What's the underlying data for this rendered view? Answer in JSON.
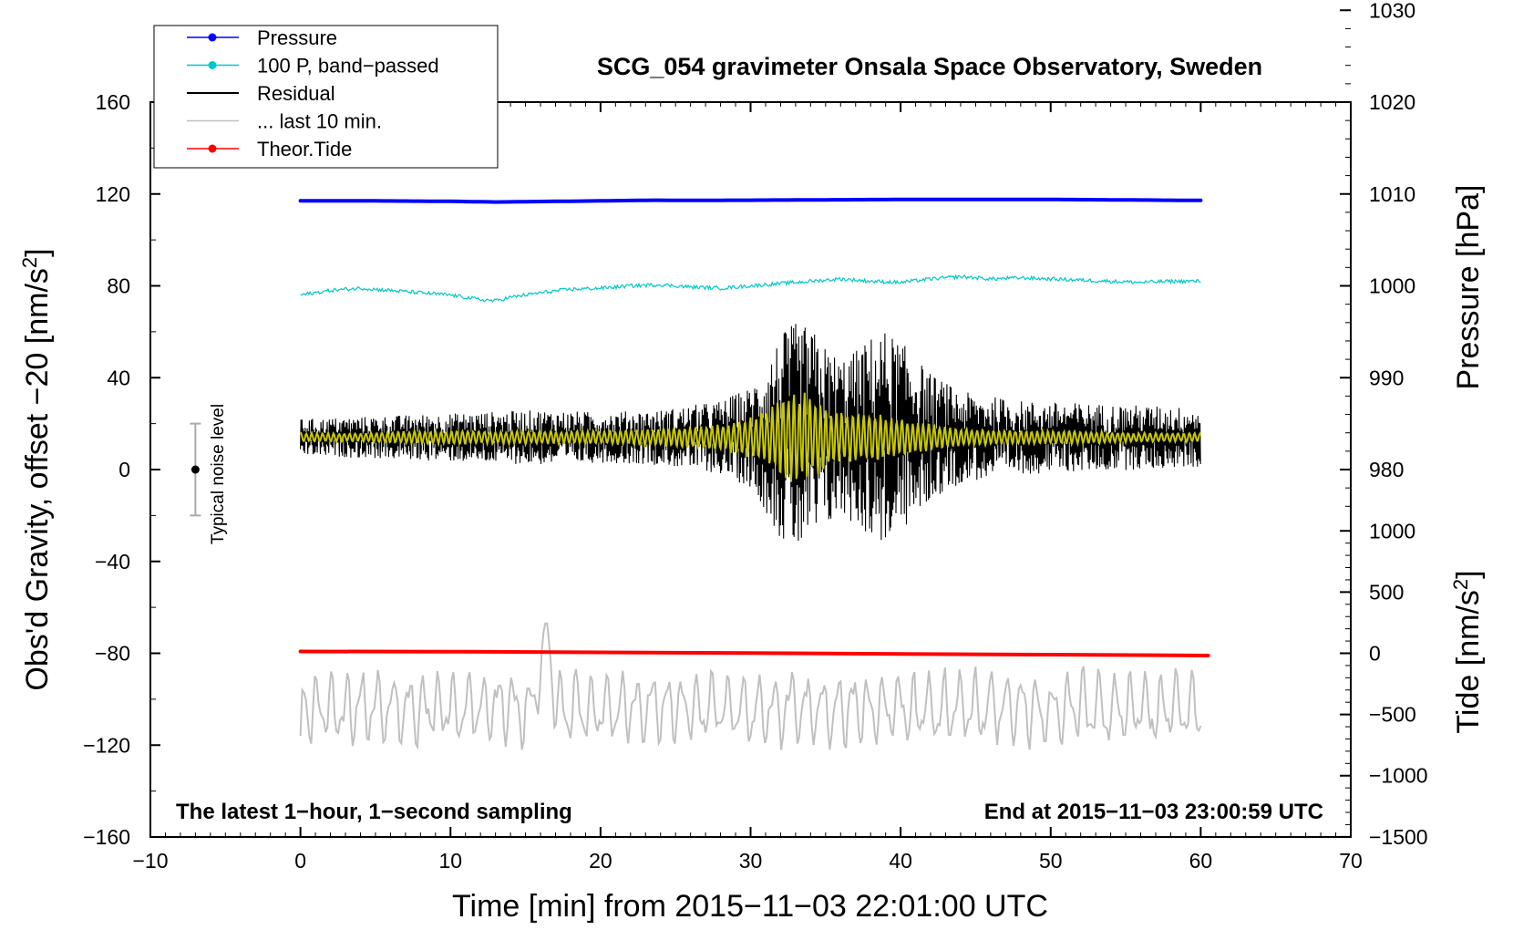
{
  "chart_data": {
    "type": "line",
    "title": "SCG_054 gravimeter Onsala Space Observatory, Sweden",
    "xlabel": "Time [min] from 2015−11−03 22:01:00 UTC",
    "ylabel_left_main": "Obs'd Gravity, offset −20 [nm/s",
    "ylabel_left_sup": "2",
    "ylabel_left_end": "]",
    "ylabel_right_top": "Pressure [hPa]",
    "ylabel_right_bottom_main": "Tide [nm/s",
    "ylabel_right_bottom_sup": "2",
    "ylabel_right_bottom_end": "]",
    "xlim": [
      -10,
      70
    ],
    "ylim_left": [
      -160,
      160
    ],
    "x_ticks": [
      {
        "value": -10,
        "label": "−10"
      },
      {
        "value": 0,
        "label": "0"
      },
      {
        "value": 10,
        "label": "10"
      },
      {
        "value": 20,
        "label": "20"
      },
      {
        "value": 30,
        "label": "30"
      },
      {
        "value": 40,
        "label": "40"
      },
      {
        "value": 50,
        "label": "50"
      },
      {
        "value": 60,
        "label": "60"
      },
      {
        "value": 70,
        "label": "70"
      }
    ],
    "y_left_ticks": [
      {
        "value": 160,
        "label": "160"
      },
      {
        "value": 120,
        "label": "120"
      },
      {
        "value": 80,
        "label": "80"
      },
      {
        "value": 40,
        "label": "40"
      },
      {
        "value": 0,
        "label": "0"
      },
      {
        "value": -40,
        "label": "−40"
      },
      {
        "value": -80,
        "label": "−80"
      },
      {
        "value": -120,
        "label": "−120"
      },
      {
        "value": -160,
        "label": "−160"
      }
    ],
    "pressure_axis": {
      "scale_nm_s2_per_hPa": 4.0,
      "ref_hPa": 1000,
      "ref_left_value": 80,
      "ticks": [
        {
          "value": 1030,
          "label": "1030"
        },
        {
          "value": 1020,
          "label": "1020"
        },
        {
          "value": 1010,
          "label": "1010"
        },
        {
          "value": 1000,
          "label": "1000"
        },
        {
          "value": 990,
          "label": "990"
        },
        {
          "value": 980,
          "label": "980"
        }
      ]
    },
    "tide_axis": {
      "scale_nm_s2_per_unit": 0.0533,
      "ref_value": 0,
      "ref_left_value": -80,
      "ticks": [
        {
          "value": 1000,
          "label": "1000"
        },
        {
          "value": 500,
          "label": "500"
        },
        {
          "value": 0,
          "label": "0"
        },
        {
          "value": -500,
          "label": "−500"
        },
        {
          "value": -1000,
          "label": "−1000"
        },
        {
          "value": -1500,
          "label": "−1500"
        }
      ]
    },
    "legend": [
      {
        "label": "Pressure",
        "color": "#0000ff",
        "marker": true
      },
      {
        "label": "100 P, band−passed",
        "color": "#00c8c8",
        "marker": true
      },
      {
        "label": "Residual",
        "color": "#000000",
        "marker": false
      },
      {
        "label": "... last 10 min.",
        "color": "#c0c0c0",
        "marker": false
      },
      {
        "label": "Theor.Tide",
        "color": "#ff0000",
        "marker": true
      }
    ],
    "legend_position": "top-left",
    "annotations": {
      "bottom_left": "The latest 1−hour, 1−second sampling",
      "bottom_right": "End at 2015−11−03 23:00:59 UTC",
      "noise_label": "Typical noise level"
    },
    "noise_bar": {
      "x": -7,
      "center": 0,
      "low": -20,
      "high": 20
    },
    "series": [
      {
        "name": "Pressure",
        "color": "#0000ff",
        "x": [
          0,
          5,
          10,
          13,
          20,
          24,
          25,
          30,
          40,
          50,
          55,
          60
        ],
        "y": [
          117,
          117,
          116.8,
          116.5,
          117,
          117.3,
          117.2,
          117.3,
          117.6,
          117.6,
          117.4,
          117.2
        ]
      },
      {
        "name": "100 P, band-passed",
        "color": "#00c8c8",
        "x": [
          0,
          2,
          4,
          6,
          8,
          10,
          12,
          13,
          14,
          16,
          18,
          20,
          22,
          24,
          26,
          28,
          30,
          32,
          34,
          36,
          38,
          40,
          42,
          44,
          46,
          48,
          50,
          52,
          54,
          56,
          58,
          60
        ],
        "y": [
          76,
          78,
          79,
          78,
          77,
          76,
          74,
          73.5,
          75,
          77,
          78.5,
          79,
          80,
          80.5,
          79.5,
          79,
          80,
          81,
          82,
          83,
          82,
          81.5,
          83,
          84,
          83,
          83.5,
          83,
          82.5,
          82,
          81.5,
          82,
          82
        ]
      },
      {
        "name": "Residual",
        "color": "#000000",
        "x": [
          0,
          4,
          8,
          12,
          16,
          20,
          24,
          28,
          30,
          31,
          32,
          33,
          34,
          35,
          36,
          37,
          38,
          39,
          40,
          41,
          42,
          44,
          48,
          52,
          56,
          60
        ],
        "envelope_center": 14,
        "envelope": [
          8,
          9,
          10,
          11,
          12,
          11,
          12,
          16,
          22,
          32,
          45,
          50,
          48,
          40,
          35,
          38,
          44,
          47,
          42,
          35,
          28,
          20,
          16,
          15,
          14,
          13
        ]
      },
      {
        "name": "Residual (smoothed)",
        "color": "#c8c800",
        "x": [
          0,
          4,
          8,
          12,
          16,
          20,
          24,
          28,
          30,
          31,
          32,
          33,
          34,
          35,
          36,
          37,
          38,
          39,
          40,
          41,
          42,
          44,
          48,
          52,
          56,
          60
        ],
        "envelope_center": 14,
        "envelope": [
          2,
          2,
          3,
          3,
          3,
          3,
          4,
          6,
          9,
          13,
          18,
          21,
          19,
          15,
          12,
          11,
          11,
          10,
          9,
          7,
          6,
          4,
          3,
          3,
          2,
          2
        ]
      },
      {
        "name": "... last 10 min.",
        "color": "#c0c0c0",
        "x_start": 0,
        "x_end": 60,
        "center": -104,
        "amplitude": 16,
        "y_first": -116,
        "peak_x": 16.3,
        "peak_y": -67,
        "trough_y": -122
      },
      {
        "name": "Theor.Tide",
        "color": "#ff0000",
        "x": [
          0,
          10,
          20,
          30,
          40,
          50,
          60.5
        ],
        "y": [
          -79.2,
          -79.3,
          -79.6,
          -79.9,
          -80.3,
          -80.6,
          -81.0
        ]
      }
    ]
  }
}
